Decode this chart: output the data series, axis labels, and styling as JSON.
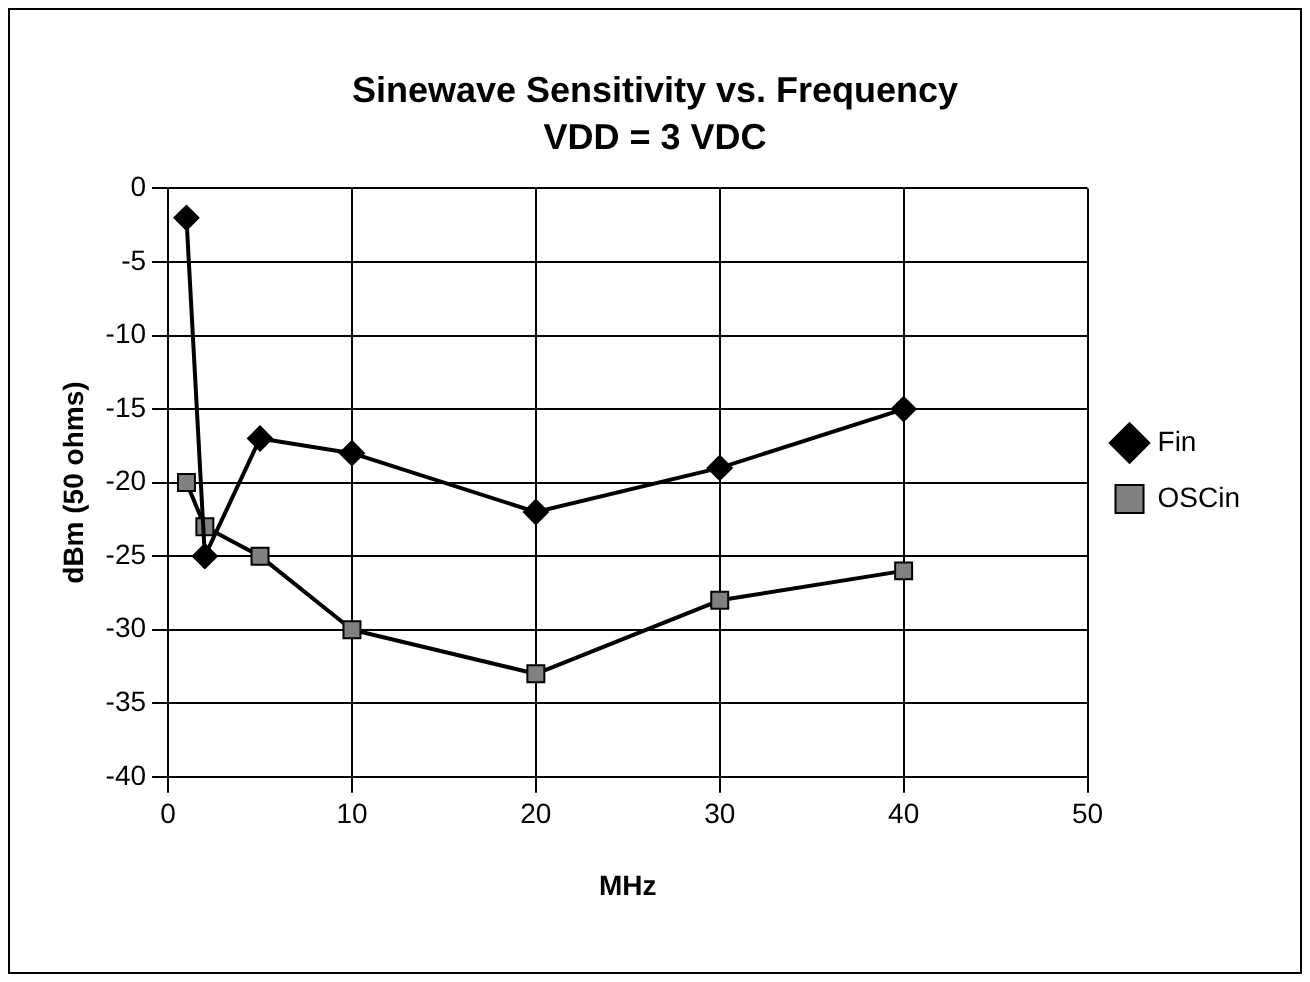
{
  "chart_data": {
    "type": "line",
    "title": "Sinewave Sensitivity vs. Frequency",
    "subtitle": "VDD = 3 VDC",
    "xlabel": "MHz",
    "ylabel": "dBm (50 ohms)",
    "x": [
      1,
      2,
      5,
      10,
      20,
      30,
      40
    ],
    "series": [
      {
        "name": "Fin",
        "color": "#000000",
        "marker": "diamond",
        "values": [
          -2,
          -25,
          -17,
          -18,
          -22,
          -19,
          -15
        ]
      },
      {
        "name": "OSCin",
        "color": "#808080",
        "marker": "square",
        "values": [
          -20,
          -23,
          -25,
          -30,
          -33,
          -28,
          -26
        ]
      }
    ],
    "xlim": [
      0,
      50
    ],
    "xticks": [
      0,
      10,
      20,
      30,
      40,
      50
    ],
    "ylim": [
      -40,
      0
    ],
    "yticks": [
      0,
      -5,
      -10,
      -15,
      -20,
      -25,
      -30,
      -35,
      -40
    ],
    "grid": true,
    "legend": "right",
    "line_style": "solid"
  }
}
